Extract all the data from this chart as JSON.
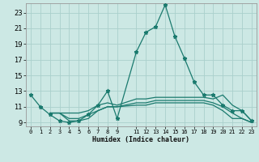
{
  "xlabel": "Humidex (Indice chaleur)",
  "bg_color": "#cce8e4",
  "grid_color": "#aad0cc",
  "line_color": "#1a7a6e",
  "xlim": [
    -0.5,
    23.5
  ],
  "ylim": [
    8.5,
    24.2
  ],
  "xticks": [
    0,
    1,
    2,
    3,
    4,
    5,
    6,
    7,
    8,
    9,
    11,
    12,
    13,
    14,
    15,
    16,
    17,
    18,
    19,
    20,
    21,
    22,
    23
  ],
  "yticks": [
    9,
    11,
    13,
    15,
    17,
    19,
    21,
    23
  ],
  "series": [
    {
      "x": [
        0,
        1,
        2,
        3,
        4,
        5,
        6,
        7,
        8,
        9,
        11,
        12,
        13,
        14,
        15,
        16,
        17,
        18,
        19,
        20,
        21,
        22,
        23
      ],
      "y": [
        12.5,
        11.0,
        10.0,
        9.2,
        9.0,
        9.2,
        10.0,
        11.2,
        13.0,
        9.5,
        18.0,
        20.5,
        21.2,
        24.0,
        20.0,
        17.2,
        14.2,
        12.5,
        12.5,
        11.2,
        10.5,
        10.5,
        9.2
      ],
      "marker": true
    },
    {
      "x": [
        2,
        3,
        4,
        5,
        6,
        7,
        8,
        9,
        11,
        12,
        13,
        14,
        15,
        16,
        17,
        18,
        19,
        20,
        21,
        22,
        23
      ],
      "y": [
        10.2,
        10.2,
        10.2,
        10.2,
        10.5,
        11.2,
        11.5,
        11.2,
        12.0,
        12.0,
        12.2,
        12.2,
        12.2,
        12.2,
        12.2,
        12.2,
        12.0,
        12.5,
        11.2,
        10.5,
        9.2
      ],
      "marker": false
    },
    {
      "x": [
        2,
        3,
        4,
        5,
        6,
        7,
        8,
        9,
        11,
        12,
        13,
        14,
        15,
        16,
        17,
        18,
        19,
        20,
        21,
        22,
        23
      ],
      "y": [
        10.2,
        10.2,
        9.5,
        9.5,
        10.0,
        10.5,
        11.0,
        11.0,
        11.5,
        11.5,
        11.8,
        11.8,
        11.8,
        11.8,
        11.8,
        11.8,
        11.5,
        11.0,
        10.2,
        9.5,
        9.0
      ],
      "marker": false
    },
    {
      "x": [
        2,
        3,
        4,
        5,
        6,
        7,
        8,
        9,
        11,
        12,
        13,
        14,
        15,
        16,
        17,
        18,
        19,
        20,
        21,
        22,
        23
      ],
      "y": [
        10.2,
        10.2,
        9.2,
        9.2,
        9.5,
        10.5,
        11.0,
        11.0,
        11.2,
        11.2,
        11.5,
        11.5,
        11.5,
        11.5,
        11.5,
        11.5,
        11.2,
        10.5,
        9.5,
        9.5,
        9.0
      ],
      "marker": false
    }
  ]
}
